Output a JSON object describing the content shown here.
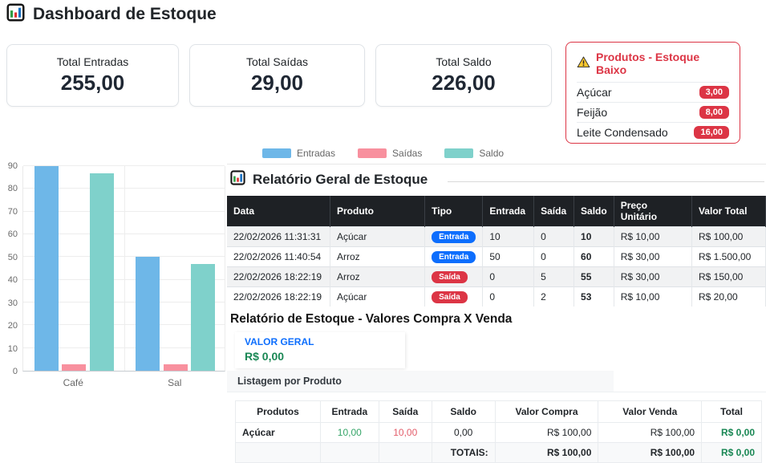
{
  "page": {
    "title": "Dashboard de Estoque"
  },
  "summary_cards": [
    {
      "label": "Total Entradas",
      "value": "255,00"
    },
    {
      "label": "Total Saídas",
      "value": "29,00"
    },
    {
      "label": "Total Saldo",
      "value": "226,00"
    }
  ],
  "low_stock": {
    "title": "Produtos - Estoque Baixo",
    "items": [
      {
        "name": "Açúcar",
        "qty": "3,00"
      },
      {
        "name": "Feijão",
        "qty": "8,00"
      },
      {
        "name": "Leite Condensado",
        "qty": "16,00"
      }
    ]
  },
  "chart_data": {
    "type": "bar",
    "categories": [
      "Café",
      "Sal"
    ],
    "series": [
      {
        "name": "Entradas",
        "color": "#6EB7E8",
        "values": [
          90,
          50
        ]
      },
      {
        "name": "Saídas",
        "color": "#F8909E",
        "values": [
          3,
          3
        ]
      },
      {
        "name": "Saldo",
        "color": "#7FD1CB",
        "values": [
          87,
          47
        ]
      }
    ],
    "ylim": [
      0,
      90
    ],
    "ytick_step": 10,
    "grid": true,
    "legend_position": "top"
  },
  "report_table": {
    "title": "Relatório Geral de Estoque",
    "columns": [
      "Data",
      "Produto",
      "Tipo",
      "Entrada",
      "Saída",
      "Saldo",
      "Preço Unitário",
      "Valor Total"
    ],
    "rows": [
      {
        "data": "22/02/2026 11:31:31",
        "produto": "Açúcar",
        "tipo": "Entrada",
        "entrada": "10",
        "saida": "0",
        "saldo": "10",
        "preco": "R$ 10,00",
        "total": "R$ 100,00"
      },
      {
        "data": "22/02/2026 11:40:54",
        "produto": "Arroz",
        "tipo": "Entrada",
        "entrada": "50",
        "saida": "0",
        "saldo": "60",
        "preco": "R$ 30,00",
        "total": "R$ 1.500,00"
      },
      {
        "data": "22/02/2026 18:22:19",
        "produto": "Arroz",
        "tipo": "Saída",
        "entrada": "0",
        "saida": "5",
        "saldo": "55",
        "preco": "R$ 30,00",
        "total": "R$ 150,00"
      },
      {
        "data": "22/02/2026 18:22:19",
        "produto": "Açúcar",
        "tipo": "Saída",
        "entrada": "0",
        "saida": "2",
        "saldo": "53",
        "preco": "R$ 10,00",
        "total": "R$ 20,00"
      }
    ]
  },
  "compra_venda": {
    "title": "Relatório de Estoque - Valores Compra X Venda",
    "valor_geral_label": "VALOR GERAL",
    "valor_geral": "R$ 0,00",
    "listagem_label": "Listagem por Produto",
    "columns": [
      "Produtos",
      "Entrada",
      "Saída",
      "Saldo",
      "Valor Compra",
      "Valor Venda",
      "Total"
    ],
    "rows": [
      {
        "produto": "Açúcar",
        "entrada": "10,00",
        "saida": "10,00",
        "saldo": "0,00",
        "compra": "R$ 100,00",
        "venda": "R$ 100,00",
        "total": "R$ 0,00"
      }
    ],
    "totals": {
      "label": "TOTAIS:",
      "compra": "R$ 100,00",
      "venda": "R$ 100,00",
      "total": "R$ 0,00"
    }
  },
  "colors": {
    "primary": "#0d6efd",
    "danger": "#dc3545",
    "success": "#198754",
    "table_header": "#1e2125"
  }
}
